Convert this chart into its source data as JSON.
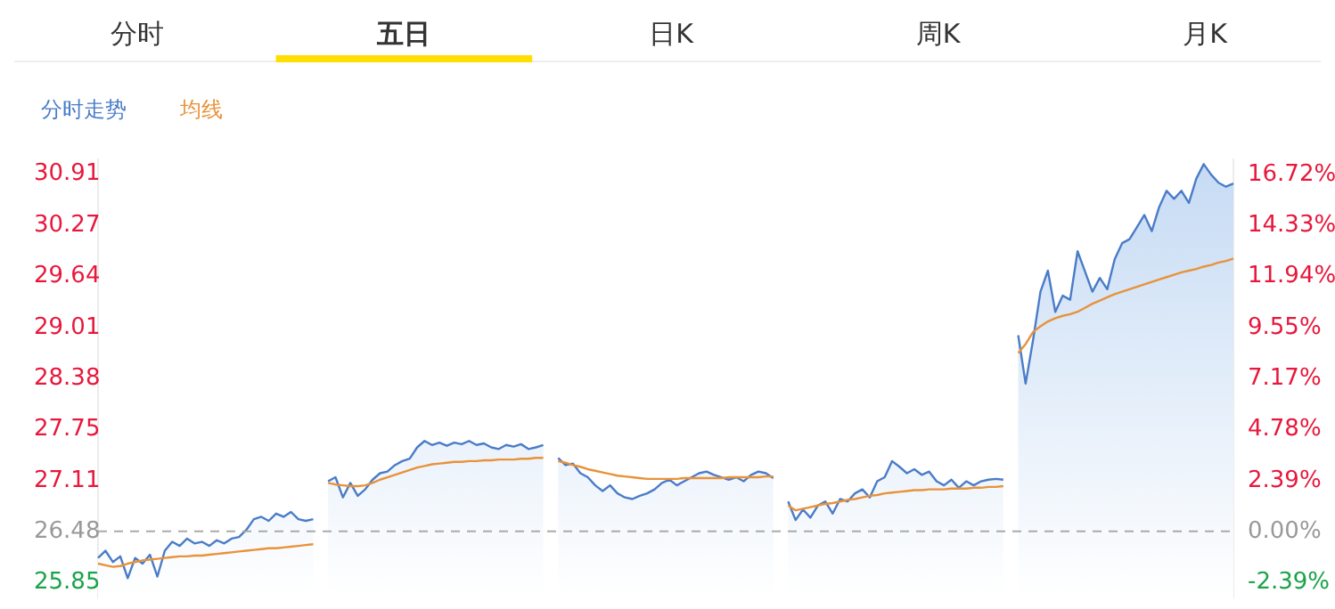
{
  "chart_data": {
    "type": "line",
    "annotations": [
      "分时",
      "五日",
      "日K",
      "周K",
      "月K"
    ],
    "categories": [
      null,
      null,
      null,
      null,
      null,
      null,
      null,
      null,
      null,
      null,
      null,
      null,
      null,
      null,
      null,
      null,
      null,
      null,
      null,
      null,
      null,
      null,
      null,
      null,
      null,
      null,
      null,
      null,
      null,
      null,
      null,
      null,
      null,
      null,
      null,
      null,
      null,
      null,
      null,
      null,
      null,
      null,
      null,
      null,
      null,
      null,
      null,
      null,
      null,
      null,
      null,
      null,
      null,
      null,
      null,
      null,
      null,
      null,
      null,
      null,
      null,
      null,
      null,
      null,
      null,
      null,
      null,
      null,
      null,
      null,
      null,
      null,
      null,
      null,
      null,
      null,
      null,
      null,
      null,
      null,
      null,
      null,
      null,
      null,
      null,
      null,
      null,
      null,
      null,
      null,
      null,
      null,
      null,
      null,
      null,
      null,
      null,
      null,
      null,
      null,
      null,
      null,
      null,
      null,
      null,
      null,
      null,
      null,
      null,
      null,
      null,
      null,
      null,
      null,
      null,
      null,
      null,
      null,
      null,
      null,
      null,
      null,
      null,
      null,
      null,
      null,
      null,
      null,
      null,
      null,
      null,
      null,
      null,
      null,
      null,
      null,
      null,
      null,
      null,
      null,
      null,
      null,
      null,
      null,
      null,
      null,
      null,
      null,
      null,
      null,
      null,
      null,
      null,
      null
    ],
    "series": [
      {
        "name": "分时走势",
        "type": "area",
        "color": "#4a7cc7",
        "values": [
          26.15,
          26.24,
          26.1,
          26.17,
          25.9,
          26.15,
          26.08,
          26.19,
          25.92,
          26.24,
          26.35,
          26.3,
          26.39,
          26.33,
          26.35,
          26.3,
          26.37,
          26.33,
          26.39,
          26.41,
          26.5,
          26.63,
          26.66,
          26.61,
          26.7,
          26.66,
          26.72,
          26.63,
          26.61,
          26.63,
          null,
          27.1,
          27.15,
          26.9,
          27.08,
          26.92,
          27.0,
          27.12,
          27.2,
          27.22,
          27.3,
          27.35,
          27.38,
          27.52,
          27.6,
          27.55,
          27.58,
          27.54,
          27.58,
          27.56,
          27.6,
          27.55,
          27.57,
          27.52,
          27.5,
          27.55,
          27.53,
          27.56,
          27.5,
          27.52,
          27.55,
          null,
          27.39,
          27.3,
          27.32,
          27.2,
          27.15,
          27.05,
          26.98,
          27.05,
          26.95,
          26.9,
          26.88,
          26.92,
          26.95,
          27.0,
          27.08,
          27.12,
          27.05,
          27.1,
          27.15,
          27.2,
          27.22,
          27.18,
          27.15,
          27.12,
          27.15,
          27.1,
          27.18,
          27.22,
          27.2,
          27.14,
          null,
          26.85,
          26.62,
          26.75,
          26.65,
          26.8,
          26.85,
          26.7,
          26.88,
          26.85,
          26.95,
          27.0,
          26.9,
          27.1,
          27.15,
          27.35,
          27.28,
          27.2,
          27.25,
          27.18,
          27.22,
          27.1,
          27.05,
          27.12,
          27.02,
          27.1,
          27.05,
          27.1,
          27.12,
          27.13,
          27.12,
          null,
          28.91,
          28.31,
          28.85,
          29.45,
          29.71,
          29.2,
          29.4,
          29.35,
          29.95,
          29.7,
          29.45,
          29.62,
          29.48,
          29.85,
          30.05,
          30.1,
          30.25,
          30.4,
          30.2,
          30.5,
          30.7,
          30.6,
          30.7,
          30.55,
          30.85,
          31.03,
          30.9,
          30.8,
          30.75,
          30.79
        ]
      },
      {
        "name": "均线",
        "type": "line",
        "color": "#e8923a",
        "values": [
          26.08,
          26.06,
          26.04,
          26.05,
          26.08,
          26.1,
          26.12,
          26.13,
          26.14,
          26.15,
          26.16,
          26.17,
          26.17,
          26.18,
          26.18,
          26.19,
          26.2,
          26.21,
          26.22,
          26.23,
          26.24,
          26.25,
          26.26,
          26.27,
          26.27,
          26.28,
          26.29,
          26.3,
          26.31,
          26.32,
          null,
          27.08,
          27.06,
          27.05,
          27.04,
          27.04,
          27.05,
          27.08,
          27.12,
          27.15,
          27.18,
          27.21,
          27.24,
          27.27,
          27.29,
          27.31,
          27.32,
          27.33,
          27.34,
          27.34,
          27.35,
          27.35,
          27.36,
          27.36,
          27.37,
          27.37,
          27.37,
          27.38,
          27.38,
          27.39,
          27.39,
          null,
          27.35,
          27.33,
          27.3,
          27.28,
          27.25,
          27.23,
          27.21,
          27.19,
          27.17,
          27.16,
          27.15,
          27.14,
          27.13,
          27.13,
          27.13,
          27.13,
          27.13,
          27.14,
          27.14,
          27.14,
          27.14,
          27.14,
          27.14,
          27.15,
          27.15,
          27.15,
          27.15,
          27.15,
          27.16,
          27.16,
          null,
          26.8,
          26.74,
          26.76,
          26.78,
          26.8,
          26.82,
          26.83,
          26.85,
          26.87,
          26.88,
          26.9,
          26.92,
          26.93,
          26.95,
          26.96,
          26.97,
          26.98,
          26.99,
          26.99,
          27.0,
          27.0,
          27.0,
          27.01,
          27.01,
          27.01,
          27.02,
          27.02,
          27.03,
          27.03,
          27.04,
          null,
          28.69,
          28.8,
          28.95,
          29.02,
          29.08,
          29.12,
          29.15,
          29.17,
          29.2,
          29.25,
          29.3,
          29.34,
          29.38,
          29.42,
          29.45,
          29.48,
          29.51,
          29.54,
          29.57,
          29.6,
          29.63,
          29.66,
          29.69,
          29.71,
          29.73,
          29.76,
          29.78,
          29.81,
          29.83,
          29.86
        ]
      }
    ],
    "ylim": [
      25.65,
      31.1
    ],
    "yticks": [
      30.91,
      30.27,
      29.64,
      29.01,
      28.38,
      27.75,
      27.11,
      26.48,
      25.85
    ],
    "y2lim": [
      -3.13,
      17.45
    ],
    "y2ticks": [
      {
        "value": 16.72,
        "label": "16.72%"
      },
      {
        "value": 14.33,
        "label": "14.33%"
      },
      {
        "value": 11.94,
        "label": "11.94%"
      },
      {
        "value": 9.55,
        "label": "9.55%"
      },
      {
        "value": 7.17,
        "label": "7.17%"
      },
      {
        "value": 4.78,
        "label": "4.78%"
      },
      {
        "value": 2.39,
        "label": "2.39%"
      },
      {
        "value": 0,
        "label": "0.00%"
      },
      {
        "value": -2.39,
        "label": "-2.39%"
      }
    ],
    "ref_lines": [
      {
        "axis": "y",
        "value": 26.48,
        "color": "#aaaaaa",
        "line_style": "dashed"
      }
    ],
    "legend": "top left",
    "grid": false
  }
}
